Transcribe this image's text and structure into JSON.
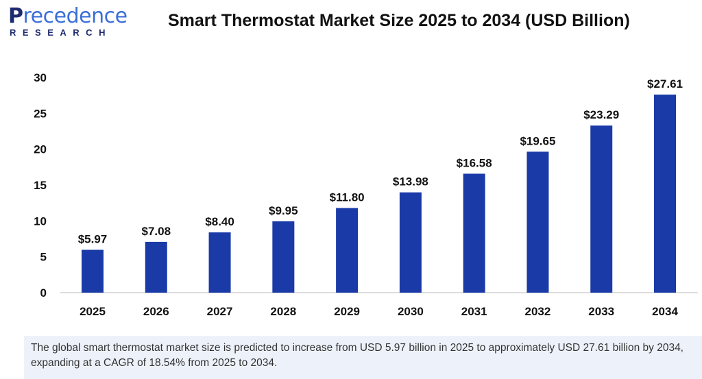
{
  "logo": {
    "brand": "Precedence",
    "sub": "RESEARCH"
  },
  "chart_data": {
    "type": "bar",
    "title": "Smart Thermostat Market Size 2025 to 2034 (USD Billion)",
    "categories": [
      "2025",
      "2026",
      "2027",
      "2028",
      "2029",
      "2030",
      "2031",
      "2032",
      "2033",
      "2034"
    ],
    "values": [
      5.97,
      7.08,
      8.4,
      9.95,
      11.8,
      13.98,
      16.58,
      19.65,
      23.29,
      27.61
    ],
    "data_labels": [
      "$5.97",
      "$7.08",
      "$8.40",
      "$9.95",
      "$11.80",
      "$13.98",
      "$16.58",
      "$19.65",
      "$23.29",
      "$27.61"
    ],
    "yticks": [
      0,
      5,
      10,
      15,
      20,
      25,
      30
    ],
    "ylim": [
      0,
      30
    ],
    "xlabel": "",
    "ylabel": "",
    "grid": false,
    "bar_color": "#1a3aa8"
  },
  "summary": "The global smart thermostat market size is predicted to increase from USD 5.97 billion in 2025 to approximately USD 27.61 billion by 2034, expanding at a CAGR of 18.54% from 2025 to 2034."
}
